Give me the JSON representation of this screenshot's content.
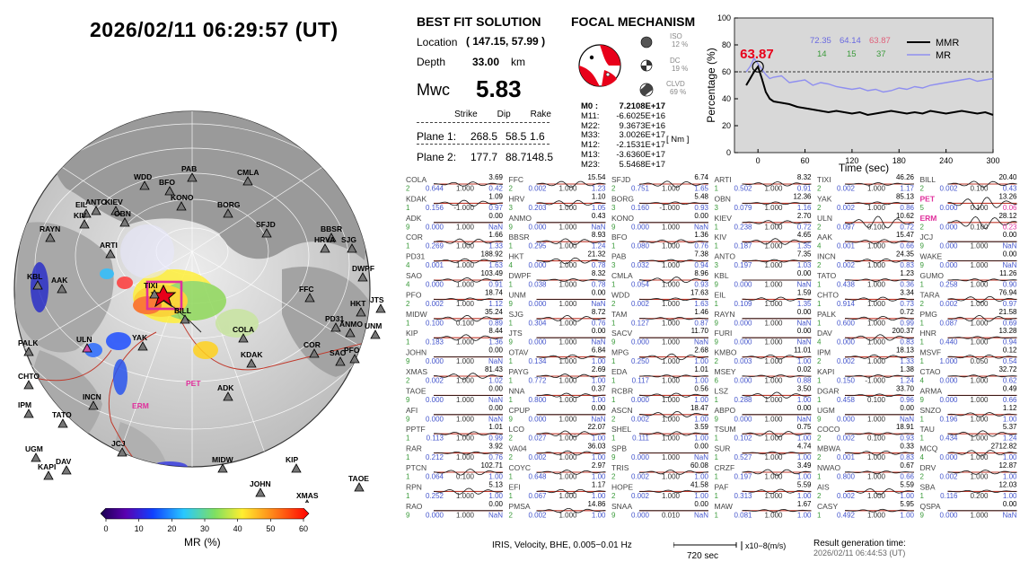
{
  "title": "2026/02/11  06:29:57 (UT)",
  "solution": {
    "heading": "BEST FIT SOLUTION",
    "location_label": "Location",
    "location_value": "( 147.15,  57.99 )",
    "depth_label": "Depth",
    "depth_value": "33.00",
    "depth_unit": "km",
    "mwc_label": "Mwc",
    "mwc_value": "5.83",
    "col_headers": [
      "Strike",
      "Dip",
      "Rake"
    ],
    "plane1_label": "Plane 1:",
    "plane1": [
      "268.5",
      "58.5",
      "1.6"
    ],
    "plane2_label": "Plane 2:",
    "plane2": [
      "177.7",
      "88.7",
      "148.5"
    ]
  },
  "focal": {
    "heading": "FOCAL MECHANISM",
    "iso_label": "ISO",
    "iso_pct": "12 %",
    "dc_label": "DC",
    "dc_pct": "19 %",
    "clvd_label": "CLVD",
    "clvd_pct": "69 %",
    "tensor_labels": [
      "M0 :",
      "M11:",
      "M22:",
      "M33:",
      "M12:",
      "M13:",
      "M23:"
    ],
    "tensor_values": [
      "7.2108E+17",
      "-6.6025E+16",
      "9.3673E+16",
      "3.0026E+17",
      "-2.1531E+17",
      "-3.6360E+17",
      "5.5468E+17"
    ],
    "unit": "[ Nm ]"
  },
  "mmr_chart": {
    "peak_label": "63.87",
    "ylabel": "Percentage (%)",
    "xlabel": "Time (sec)",
    "legend": [
      "MMR",
      "MR"
    ],
    "top_values": [
      "72.35",
      "64.14",
      "63.87"
    ],
    "counts": [
      "14",
      "15",
      "37"
    ],
    "colors": {
      "mmr": "#000000",
      "mr": "#8f8ff0",
      "peak": "#e8001a",
      "bg": "#d8d8d8"
    }
  },
  "chart_data": {
    "type": "line",
    "xlabel": "Time (sec)",
    "ylabel": "Percentage (%)",
    "xlim": [
      -30,
      300
    ],
    "ylim": [
      0,
      100
    ],
    "xticks": [
      0,
      60,
      120,
      180,
      240,
      300
    ],
    "yticks": [
      0,
      20,
      40,
      60,
      80,
      100
    ],
    "grid": false,
    "legend_position": "top-right",
    "series": [
      {
        "name": "MMR",
        "x": [
          -15,
          -10,
          -5,
          0,
          5,
          10,
          15,
          20,
          30,
          40,
          50,
          60,
          70,
          80,
          90,
          100,
          110,
          120,
          130,
          140,
          150,
          160,
          170,
          180,
          190,
          200,
          210,
          220,
          230,
          240,
          250,
          260,
          270,
          280,
          290,
          300
        ],
        "values": [
          50,
          55,
          60,
          63.87,
          55,
          45,
          40,
          38,
          37,
          36,
          34,
          33,
          32,
          31,
          30,
          31,
          30,
          29,
          30,
          28,
          29,
          30,
          31,
          30,
          29,
          30,
          29,
          31,
          30,
          29,
          30,
          31,
          30,
          29,
          30,
          28
        ]
      },
      {
        "name": "MR",
        "x": [
          -15,
          -10,
          -5,
          0,
          5,
          10,
          15,
          20,
          30,
          40,
          50,
          60,
          70,
          80,
          90,
          100,
          110,
          120,
          130,
          140,
          150,
          160,
          170,
          180,
          190,
          200,
          210,
          220,
          230,
          240,
          250,
          260,
          270,
          280,
          290,
          300
        ],
        "values": [
          60,
          64,
          70,
          66,
          62,
          58,
          55,
          56,
          57,
          52,
          53,
          54,
          50,
          52,
          51,
          49,
          48,
          47,
          48,
          46,
          47,
          45,
          46,
          48,
          47,
          49,
          48,
          50,
          51,
          52,
          53,
          54,
          55,
          53,
          54,
          55
        ]
      }
    ]
  },
  "map": {
    "colorbar_ticks": [
      "0",
      "10",
      "20",
      "30",
      "40",
      "50",
      "60"
    ],
    "colorbar_label": "MR (%)",
    "stations": [
      {
        "n": "PAB",
        "x": 200,
        "y": 108
      },
      {
        "n": "CMLA",
        "x": 262,
        "y": 112
      },
      {
        "n": "WDD",
        "x": 147,
        "y": 117
      },
      {
        "n": "BFO",
        "x": 175,
        "y": 123
      },
      {
        "n": "KONO",
        "x": 188,
        "y": 140
      },
      {
        "n": "BORG",
        "x": 240,
        "y": 148
      },
      {
        "n": "EIL",
        "x": 82,
        "y": 148
      },
      {
        "n": "ANTO",
        "x": 93,
        "y": 145
      },
      {
        "n": "KIEV",
        "x": 115,
        "y": 145
      },
      {
        "n": "KIV",
        "x": 80,
        "y": 160
      },
      {
        "n": "OBN",
        "x": 125,
        "y": 158
      },
      {
        "n": "SFJD",
        "x": 283,
        "y": 170
      },
      {
        "n": "BBSR",
        "x": 355,
        "y": 175
      },
      {
        "n": "HRVA",
        "x": 348,
        "y": 187
      },
      {
        "n": "SJG",
        "x": 378,
        "y": 187
      },
      {
        "n": "RAYN",
        "x": 42,
        "y": 175
      },
      {
        "n": "ARTI",
        "x": 109,
        "y": 193
      },
      {
        "n": "DWPF",
        "x": 390,
        "y": 219
      },
      {
        "n": "FFC",
        "x": 331,
        "y": 242
      },
      {
        "n": "TIXI",
        "x": 158,
        "y": 238
      },
      {
        "n": "KBL",
        "x": 28,
        "y": 228
      },
      {
        "n": "AAK",
        "x": 55,
        "y": 232
      },
      {
        "n": "HKT",
        "x": 388,
        "y": 258
      },
      {
        "n": "JTS",
        "x": 410,
        "y": 254
      },
      {
        "n": "PD31",
        "x": 360,
        "y": 275
      },
      {
        "n": "ANMO",
        "x": 376,
        "y": 281
      },
      {
        "n": "UNM",
        "x": 404,
        "y": 283
      },
      {
        "n": "BILL",
        "x": 192,
        "y": 266
      },
      {
        "n": "COLA",
        "x": 257,
        "y": 287
      },
      {
        "n": "YAK",
        "x": 145,
        "y": 296
      },
      {
        "n": "ULN",
        "x": 83,
        "y": 298
      },
      {
        "n": "PALK",
        "x": 18,
        "y": 302
      },
      {
        "n": "COR",
        "x": 336,
        "y": 304
      },
      {
        "n": "SAO",
        "x": 365,
        "y": 313
      },
      {
        "n": "PFO",
        "x": 381,
        "y": 310
      },
      {
        "n": "KDAK",
        "x": 266,
        "y": 315
      },
      {
        "n": "CHTO",
        "x": 18,
        "y": 339
      },
      {
        "n": "INCN",
        "x": 90,
        "y": 362
      },
      {
        "n": "PET",
        "x": 193,
        "y": 347
      },
      {
        "n": "ADK",
        "x": 240,
        "y": 352
      },
      {
        "n": "ERM",
        "x": 133,
        "y": 372
      },
      {
        "n": "IPM",
        "x": 18,
        "y": 371
      },
      {
        "n": "TATO",
        "x": 56,
        "y": 382
      },
      {
        "n": "JCJ",
        "x": 122,
        "y": 414
      },
      {
        "n": "UGM",
        "x": 26,
        "y": 420
      },
      {
        "n": "DAV",
        "x": 60,
        "y": 434
      },
      {
        "n": "KAPI",
        "x": 40,
        "y": 440
      },
      {
        "n": "MIDW",
        "x": 234,
        "y": 432
      },
      {
        "n": "KIP",
        "x": 316,
        "y": 432
      },
      {
        "n": "TAOE",
        "x": 386,
        "y": 453
      },
      {
        "n": "JOHN",
        "x": 276,
        "y": 459
      },
      {
        "n": "GUMO",
        "x": 115,
        "y": 483
      },
      {
        "n": "WAKE",
        "x": 196,
        "y": 488
      },
      {
        "n": "XMAS",
        "x": 328,
        "y": 472
      },
      {
        "n": "PPTF",
        "x": 355,
        "y": 484
      },
      {
        "n": "PMG",
        "x": 126,
        "y": 500
      },
      {
        "n": "CTAO",
        "x": 131,
        "y": 508
      },
      {
        "n": "TARA",
        "x": 218,
        "y": 502
      },
      {
        "n": "RAR",
        "x": 306,
        "y": 503
      },
      {
        "n": "HNR",
        "x": 172,
        "y": 515
      },
      {
        "n": "AFI",
        "x": 270,
        "y": 514
      },
      {
        "n": "MSVF",
        "x": 222,
        "y": 522
      }
    ]
  },
  "footer": {
    "processing": "IRIS,  Velocity,   BHE,  0.005−0.01 Hz",
    "scale_unit": "x10−8(m/s)",
    "time_scale": "720 sec",
    "result_label": "Result generation time:",
    "result_time": "2026/02/11  06:44:53 (UT)"
  },
  "waveforms": [
    [
      "COLA",
      "2",
      "0.644",
      "1.000",
      "0.42",
      "3.69"
    ],
    [
      "FFC",
      "2",
      "0.002",
      "1.000",
      "1.23",
      "15.54"
    ],
    [
      "SFJD",
      "2",
      "0.751",
      "1.000",
      "1.65",
      "6.74"
    ],
    [
      "ARTI",
      "1",
      "0.502",
      "1.000",
      "0.91",
      "8.32"
    ],
    [
      "TIXI",
      "2",
      "0.002",
      "1.000",
      "1.17",
      "46.26"
    ],
    [
      "BILL",
      "2",
      "0.002",
      "0.100",
      "0.43",
      "20.40"
    ],
    [
      "KDAK",
      "1",
      "0.156",
      "-1.000",
      "0.97",
      "1.09"
    ],
    [
      "HRV",
      "3",
      "0.203",
      "1.000",
      "1.05",
      "1.10"
    ],
    [
      "BORG",
      "3",
      "0.160",
      "-1.000",
      "0.93",
      "5.48"
    ],
    [
      "OBN",
      "3",
      "0.079",
      "1.000",
      "1.16",
      "12.36"
    ],
    [
      "YAK",
      "2",
      "0.002",
      "1.000",
      "0.86",
      "85.13"
    ],
    [
      "PET",
      "5",
      "0.000",
      "0.100",
      "0.06",
      "13.26"
    ],
    [
      "ADK",
      "9",
      "0.000",
      "1.000",
      "NaN",
      "0.00"
    ],
    [
      "ANMO",
      "9",
      "0.000",
      "1.000",
      "NaN",
      "0.43"
    ],
    [
      "KONO",
      "9",
      "0.000",
      "1.000",
      "NaN",
      "0.00"
    ],
    [
      "KIEV",
      "1",
      "0.238",
      "1.000",
      "0.72",
      "2.70"
    ],
    [
      "ULN",
      "2",
      "0.097",
      "0.100",
      "0.72",
      "10.62"
    ],
    [
      "ERM",
      "2",
      "0.000",
      "0.100",
      "0.23",
      "28.12"
    ],
    [
      "COR",
      "1",
      "0.269",
      "1.000",
      "1.33",
      "1.66"
    ],
    [
      "BBSR",
      "1",
      "0.295",
      "1.000",
      "1.24",
      "8.93"
    ],
    [
      "BFO",
      "1",
      "0.080",
      "1.000",
      "0.76",
      "1.36"
    ],
    [
      "KIV",
      "1",
      "0.187",
      "1.000",
      "1.35",
      "4.65"
    ],
    [
      "AAK",
      "4",
      "0.001",
      "1.000",
      "0.66",
      "15.47"
    ],
    [
      "JCJ",
      "9",
      "0.000",
      "1.000",
      "NaN",
      "0.00"
    ],
    [
      "PD31",
      "4",
      "0.001",
      "1.000",
      "1.63",
      "188.92"
    ],
    [
      "HKT",
      "4",
      "0.000",
      "1.000",
      "0.78",
      "21.32"
    ],
    [
      "PAB",
      "3",
      "0.032",
      "1.000",
      "0.94",
      "7.38"
    ],
    [
      "ANTO",
      "3",
      "0.197",
      "1.000",
      "1.03",
      "7.35"
    ],
    [
      "INCN",
      "2",
      "0.002",
      "1.000",
      "0.83",
      "24.35"
    ],
    [
      "WAKE",
      "9",
      "0.000",
      "1.000",
      "NaN",
      "0.00"
    ],
    [
      "SAO",
      "4",
      "0.000",
      "1.000",
      "0.91",
      "103.49"
    ],
    [
      "DWPF",
      "1",
      "0.038",
      "1.000",
      "0.78",
      "8.32"
    ],
    [
      "CMLA",
      "1",
      "0.054",
      "1.000",
      "0.93",
      "8.96"
    ],
    [
      "KBL",
      "9",
      "0.000",
      "1.000",
      "NaN",
      "0.00"
    ],
    [
      "TATO",
      "1",
      "0.438",
      "1.000",
      "0.36",
      "1.23"
    ],
    [
      "GUMO",
      "1",
      "0.258",
      "1.000",
      "0.90",
      "11.26"
    ],
    [
      "PFO",
      "2",
      "0.002",
      "1.000",
      "1.12",
      "18.74"
    ],
    [
      "UNM",
      "9",
      "0.000",
      "1.000",
      "NaN",
      "0.00"
    ],
    [
      "WDD",
      "2",
      "0.002",
      "1.000",
      "1.63",
      "17.63"
    ],
    [
      "EIL",
      "1",
      "0.109",
      "1.000",
      "1.35",
      "1.59"
    ],
    [
      "CHTO",
      "1",
      "0.914",
      "1.000",
      "0.73",
      "3.34"
    ],
    [
      "TARA",
      "2",
      "0.002",
      "1.000",
      "0.97",
      "76.94"
    ],
    [
      "MIDW",
      "1",
      "0.100",
      "0.100",
      "0.89",
      "35.24"
    ],
    [
      "SJG",
      "1",
      "0.304",
      "1.000",
      "0.76",
      "8.72"
    ],
    [
      "TAM",
      "1",
      "0.127",
      "1.000",
      "0.87",
      "1.46"
    ],
    [
      "RAYN",
      "9",
      "0.000",
      "1.000",
      "NaN",
      "0.00"
    ],
    [
      "PALK",
      "1",
      "0.600",
      "1.000",
      "0.99",
      "0.72"
    ],
    [
      "PMG",
      "1",
      "0.087",
      "1.000",
      "0.69",
      "21.58"
    ],
    [
      "KIP",
      "1",
      "0.183",
      "1.000",
      "1.36",
      "8.44"
    ],
    [
      "JTS",
      "9",
      "0.000",
      "1.000",
      "NaN",
      "0.00"
    ],
    [
      "SACV",
      "9",
      "0.000",
      "1.000",
      "NaN",
      "11.70"
    ],
    [
      "FURI",
      "9",
      "0.000",
      "1.000",
      "NaN",
      "0.00"
    ],
    [
      "DAV",
      "4",
      "0.000",
      "1.000",
      "0.83",
      "200.37"
    ],
    [
      "HNR",
      "1",
      "0.440",
      "1.000",
      "0.94",
      "13.28"
    ],
    [
      "JOHN",
      "9",
      "0.000",
      "1.000",
      "NaN",
      "0.00"
    ],
    [
      "OTAV",
      "1",
      "0.134",
      "1.000",
      "1.00",
      "6.84"
    ],
    [
      "MPG",
      "1",
      "0.250",
      "1.000",
      "1.00",
      "2.68"
    ],
    [
      "KMBO",
      "2",
      "0.003",
      "1.000",
      "1.00",
      "11.01"
    ],
    [
      "IPM",
      "2",
      "0.002",
      "1.000",
      "1.33",
      "18.13"
    ],
    [
      "MSVF",
      "1",
      "1.000",
      "0.050",
      "0.54",
      "0.12"
    ],
    [
      "XMAS",
      "2",
      "0.002",
      "1.000",
      "1.02",
      "81.43"
    ],
    [
      "PAYG",
      "1",
      "0.772",
      "1.000",
      "1.00",
      "2.69"
    ],
    [
      "EDA",
      "1",
      "0.117",
      "1.000",
      "1.00",
      "1.01"
    ],
    [
      "MSEY",
      "6",
      "0.000",
      "1.000",
      "0.88",
      "0.02"
    ],
    [
      "KAPI",
      "1",
      "0.150",
      "-1.000",
      "1.24",
      "1.38"
    ],
    [
      "CTAO",
      "4",
      "0.000",
      "1.000",
      "0.62",
      "32.72"
    ],
    [
      "TAOE",
      "9",
      "0.000",
      "1.000",
      "NaN",
      "0.00"
    ],
    [
      "NNA",
      "1",
      "0.800",
      "1.000",
      "1.00",
      "0.37"
    ],
    [
      "RCBR",
      "1",
      "0.000",
      "1.000",
      "1.00",
      "0.56"
    ],
    [
      "LSZ",
      "1",
      "0.288",
      "1.000",
      "1.00",
      "3.50"
    ],
    [
      "DGAR",
      "1",
      "0.458",
      "0.100",
      "0.96",
      "33.70"
    ],
    [
      "ARMA",
      "9",
      "0.000",
      "1.000",
      "0.66",
      "0.49"
    ],
    [
      "AFI",
      "9",
      "0.000",
      "1.000",
      "NaN",
      "0.00"
    ],
    [
      "CPUP",
      "9",
      "0.000",
      "1.000",
      "NaN",
      "0.00"
    ],
    [
      "ASCN",
      "2",
      "0.002",
      "1.000",
      "1.00",
      "18.47"
    ],
    [
      "ABPO",
      "9",
      "0.000",
      "1.000",
      "NaN",
      "0.00"
    ],
    [
      "UGM",
      "9",
      "0.000",
      "1.000",
      "NaN",
      "0.00"
    ],
    [
      "SNZO",
      "1",
      "0.196",
      "1.000",
      "1.00",
      "1.12"
    ],
    [
      "PPTF",
      "1",
      "0.113",
      "1.000",
      "0.99",
      "1.01"
    ],
    [
      "LCO",
      "2",
      "0.027",
      "1.000",
      "1.00",
      "22.07"
    ],
    [
      "SHEL",
      "1",
      "0.111",
      "1.000",
      "1.00",
      "3.59"
    ],
    [
      "TSUM",
      "1",
      "0.102",
      "1.000",
      "1.00",
      "0.75"
    ],
    [
      "COCO",
      "2",
      "0.002",
      "0.100",
      "0.93",
      "18.91"
    ],
    [
      "TAU",
      "1",
      "0.434",
      "1.000",
      "1.24",
      "5.37"
    ],
    [
      "RAR",
      "1",
      "0.212",
      "1.000",
      "0.76",
      "3.92"
    ],
    [
      "VA04",
      "2",
      "0.002",
      "1.000",
      "1.00",
      "36.03"
    ],
    [
      "SPB",
      "9",
      "0.000",
      "1.000",
      "NaN",
      "0.00"
    ],
    [
      "SUR",
      "1",
      "0.527",
      "1.000",
      "1.00",
      "4.74"
    ],
    [
      "MBWA",
      "2",
      "0.001",
      "1.000",
      "0.83",
      "0.33"
    ],
    [
      "MCQ",
      "4",
      "0.000",
      "1.000",
      "1.00",
      "2712.82"
    ],
    [
      "PTCN",
      "1",
      "0.064",
      "0.100",
      "1.00",
      "102.71"
    ],
    [
      "COYC",
      "1",
      "0.648",
      "1.000",
      "1.00",
      "2.97"
    ],
    [
      "TRIS",
      "2",
      "0.002",
      "1.000",
      "1.00",
      "60.08"
    ],
    [
      "CRZF",
      "1",
      "0.197",
      "1.000",
      "1.00",
      "3.49"
    ],
    [
      "NWAO",
      "1",
      "0.800",
      "1.000",
      "0.66",
      "0.67"
    ],
    [
      "DRV",
      "2",
      "0.002",
      "1.000",
      "1.00",
      "12.87"
    ],
    [
      "RPN",
      "1",
      "0.252",
      "1.000",
      "1.00",
      "5.13"
    ],
    [
      "EFI",
      "1",
      "0.067",
      "1.000",
      "1.00",
      "1.17"
    ],
    [
      "HOPE",
      "2",
      "0.002",
      "1.000",
      "1.00",
      "41.58"
    ],
    [
      "PAF",
      "1",
      "0.313",
      "1.000",
      "1.00",
      "5.59"
    ],
    [
      "AIS",
      "2",
      "0.002",
      "1.000",
      "1.00",
      "5.59"
    ],
    [
      "SBA",
      "1",
      "0.116",
      "0.200",
      "1.00",
      "12.03"
    ],
    [
      "RAO",
      "9",
      "0.000",
      "1.000",
      "NaN",
      "0.00"
    ],
    [
      "PMSA",
      "2",
      "0.002",
      "1.000",
      "1.00",
      "14.86"
    ],
    [
      "SNAA",
      "9",
      "0.000",
      "0.010",
      "NaN",
      "0.00"
    ],
    [
      "MAW",
      "1",
      "0.081",
      "1.000",
      "1.00",
      "1.67"
    ],
    [
      "CASY",
      "1",
      "0.492",
      "1.000",
      "1.00",
      "5.95"
    ],
    [
      "QSPA",
      "9",
      "0.000",
      "1.000",
      "NaN",
      "0.00"
    ]
  ]
}
